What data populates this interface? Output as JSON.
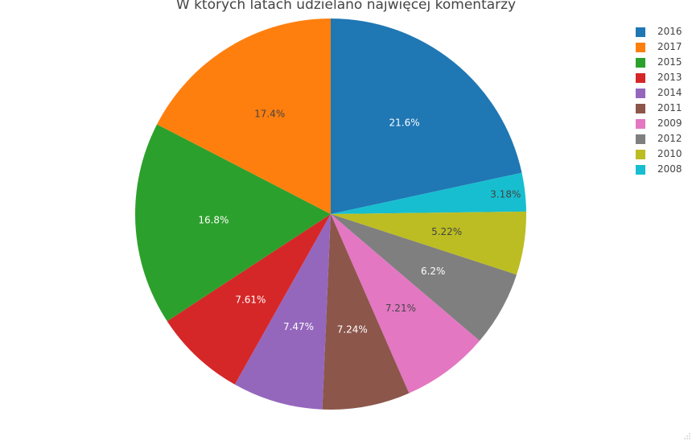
{
  "chart_data": {
    "type": "pie",
    "title": "W których latach udzielano najwięcej komentarzy",
    "slices": [
      {
        "label": "2016",
        "percent": 21.6,
        "text": "21.6%",
        "color": "#1f77b4",
        "text_color": "#ffffff"
      },
      {
        "label": "2008",
        "percent": 3.18,
        "text": "3.18%",
        "color": "#17becf",
        "text_color": "#444444"
      },
      {
        "label": "2010",
        "percent": 5.22,
        "text": "5.22%",
        "color": "#bcbd22",
        "text_color": "#444444"
      },
      {
        "label": "2012",
        "percent": 6.2,
        "text": "6.2%",
        "color": "#7f7f7f",
        "text_color": "#ffffff"
      },
      {
        "label": "2009",
        "percent": 7.21,
        "text": "7.21%",
        "color": "#e377c2",
        "text_color": "#444444"
      },
      {
        "label": "2011",
        "percent": 7.24,
        "text": "7.24%",
        "color": "#8c564b",
        "text_color": "#ffffff"
      },
      {
        "label": "2014",
        "percent": 7.47,
        "text": "7.47%",
        "color": "#9467bd",
        "text_color": "#ffffff"
      },
      {
        "label": "2013",
        "percent": 7.61,
        "text": "7.61%",
        "color": "#d62728",
        "text_color": "#ffffff"
      },
      {
        "label": "2015",
        "percent": 16.8,
        "text": "16.8%",
        "color": "#2ca02c",
        "text_color": "#ffffff"
      },
      {
        "label": "2017",
        "percent": 17.4,
        "text": "17.4%",
        "color": "#ff7f0e",
        "text_color": "#444444"
      }
    ],
    "legend": {
      "placement": "top-right",
      "order": [
        "2016",
        "2017",
        "2015",
        "2013",
        "2014",
        "2011",
        "2009",
        "2012",
        "2010",
        "2008"
      ]
    }
  }
}
